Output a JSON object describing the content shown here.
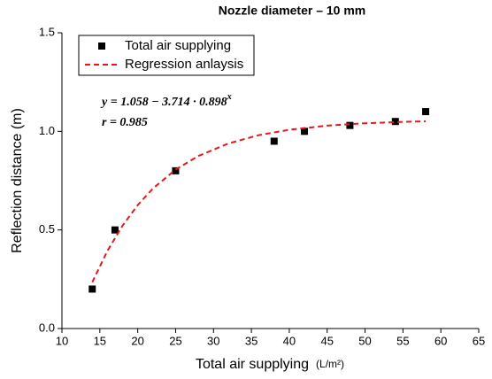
{
  "chart_data": {
    "type": "scatter",
    "title": "Nozzle diameter – 10 mm",
    "x_label": "Total air supplying",
    "x_unit": "(L/m²)",
    "y_label": "Reflection distance (m)",
    "series": [
      {
        "name": "Total air supplying",
        "type": "scatter",
        "color": "#000000",
        "x": [
          14,
          17,
          25,
          38,
          42,
          48,
          54,
          58
        ],
        "values": [
          0.2,
          0.5,
          0.8,
          0.95,
          1.0,
          1.03,
          1.05,
          1.1
        ]
      },
      {
        "name": "Regression anlaysis",
        "type": "line",
        "color": "#e8161b",
        "x": [
          14,
          16,
          18,
          20,
          22,
          25,
          28,
          32,
          36,
          40,
          45,
          50,
          55,
          58
        ],
        "values": [
          0.235,
          0.394,
          0.522,
          0.626,
          0.71,
          0.806,
          0.875,
          0.939,
          0.981,
          1.008,
          1.029,
          1.041,
          1.048,
          1.051
        ]
      }
    ],
    "equation": {
      "base": "y = 1.058 − 3.714 · 0.898",
      "exponent": "x"
    },
    "r_text": "r = 0.985",
    "xlim": [
      10,
      65
    ],
    "xticks": [
      10,
      15,
      20,
      25,
      30,
      35,
      40,
      45,
      50,
      55,
      60,
      65
    ],
    "ylim": [
      0,
      1.5
    ],
    "yticks": [
      {
        "value": 0,
        "label": "0.0"
      },
      0.5,
      {
        "value": 1,
        "label": "1.0"
      },
      {
        "value": 1.5,
        "label": "1.5"
      }
    ],
    "legend": "top-left"
  }
}
